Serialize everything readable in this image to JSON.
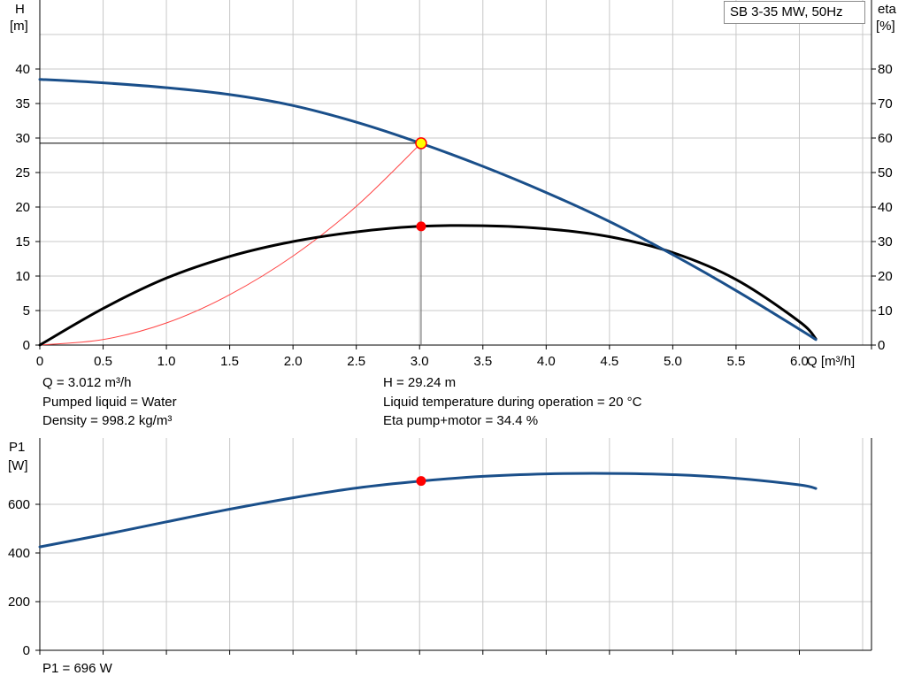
{
  "pump_model": "SB 3-35 MW, 50Hz",
  "colors": {
    "head_curve": "#1a4f8a",
    "eta_curve": "#000000",
    "power_curve": "#1a4f8a",
    "system_curve": "#ff4444",
    "duty_marker": "#ff0000",
    "duty_point_fill": "#ffff00",
    "grid": "#c8c8c8"
  },
  "info": {
    "flow": "Q = 3.012 m³/h",
    "head": "H = 29.24 m",
    "liquid": "Pumped liquid = Water",
    "temperature": "Liquid temperature during operation = 20 °C",
    "density": "Density = 998.2 kg/m³",
    "efficiency": "Eta pump+motor = 34.4 %",
    "power": "P1 = 696 W"
  },
  "chart_data": [
    {
      "type": "line",
      "x_axis": {
        "label": "Q [m³/h]",
        "min": 0,
        "max": 6.5,
        "ticks": [
          0,
          0.5,
          1.0,
          1.5,
          2.0,
          2.5,
          3.0,
          3.5,
          4.0,
          4.5,
          5.0,
          5.5,
          6.0
        ],
        "tick_labels": [
          "0",
          "0.5",
          "1.0",
          "1.5",
          "2.0",
          "2.5",
          "3.0",
          "3.5",
          "4.0",
          "4.5",
          "5.0",
          "5.5",
          "6.0"
        ]
      },
      "y_axis_left": {
        "label_top": "H",
        "label_unit": "[m]",
        "min": 0,
        "max": 40,
        "ticks": [
          0,
          5,
          10,
          15,
          20,
          25,
          30,
          35,
          40
        ]
      },
      "y_axis_right": {
        "label_top": "eta",
        "label_unit": "[%]",
        "min": 0,
        "max": 80,
        "ticks": [
          0,
          10,
          20,
          30,
          40,
          50,
          60,
          70,
          80
        ]
      },
      "grid": true,
      "series": [
        {
          "axis": "left",
          "x": [
            0,
            0.5,
            1.0,
            1.5,
            2.0,
            2.5,
            3.0,
            3.5,
            4.0,
            4.5,
            5.0,
            5.5,
            6.0,
            6.13
          ],
          "y": [
            38.5,
            38.0,
            37.3,
            36.3,
            34.7,
            32.3,
            29.3,
            25.9,
            22.1,
            17.9,
            13.1,
            7.9,
            2.3,
            0.8
          ]
        },
        {
          "axis": "right",
          "x": [
            0,
            0.5,
            1.0,
            1.5,
            2.0,
            2.5,
            3.0,
            3.5,
            4.0,
            4.5,
            5.0,
            5.5,
            6.0,
            6.13
          ],
          "y": [
            0,
            10.6,
            19.4,
            25.7,
            30.0,
            32.8,
            34.4,
            34.6,
            33.7,
            31.4,
            26.8,
            19.0,
            6.8,
            1.8
          ]
        },
        {
          "axis": "left",
          "x": [
            0,
            0.5,
            1.0,
            1.5,
            2.0,
            2.5,
            3.012
          ],
          "y": [
            0,
            0.8,
            3.2,
            7.3,
            12.9,
            20.1,
            29.24
          ]
        }
      ],
      "duty_point": {
        "x": 3.012,
        "head": 29.24,
        "eta": 34.4
      }
    },
    {
      "type": "line",
      "x_axis": {
        "min": 0,
        "max": 6.5
      },
      "y_axis": {
        "label_top": "P1",
        "label_unit": "[W]",
        "min": 0,
        "max": 800,
        "ticks": [
          0,
          200,
          400,
          600
        ]
      },
      "grid": true,
      "series": [
        {
          "x": [
            0,
            0.5,
            1.0,
            1.5,
            2.0,
            2.5,
            3.0,
            3.5,
            4.0,
            4.5,
            5.0,
            5.5,
            6.0,
            6.13
          ],
          "y": [
            425,
            475,
            528,
            580,
            627,
            667,
            695,
            715,
            725,
            727,
            722,
            707,
            680,
            665
          ]
        }
      ],
      "duty_point": {
        "x": 3.012,
        "y": 696
      }
    }
  ]
}
